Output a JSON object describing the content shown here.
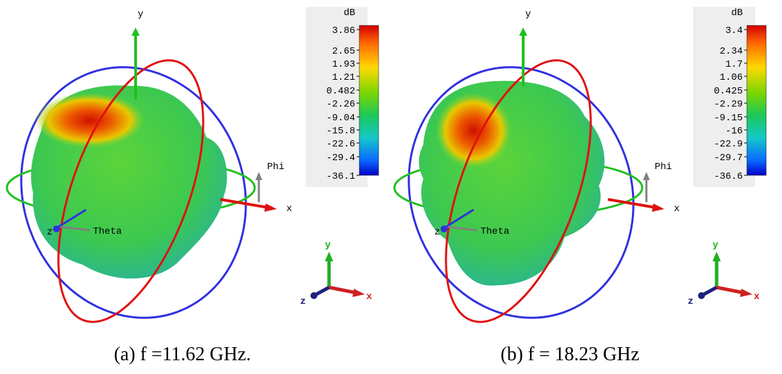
{
  "panels": [
    {
      "caption": "(a) f =11.62 GHz.",
      "colorbar": {
        "unit": "dB",
        "labels": [
          "3.86",
          "2.65",
          "1.93",
          "1.21",
          "0.482",
          "-2.26",
          "-9.04",
          "-15.8",
          "-22.6",
          "-29.4",
          "-36.1"
        ]
      },
      "axes": {
        "x": "x",
        "y": "y",
        "z": "z",
        "phi": "Phi",
        "theta": "Theta"
      },
      "triad": {
        "x": "x",
        "y": "y",
        "z": "z"
      }
    },
    {
      "caption": "(b) f = 18.23 GHz",
      "colorbar": {
        "unit": "dB",
        "labels": [
          "3.4",
          "2.34",
          "1.7",
          "1.06",
          "0.425",
          "-2.29",
          "-9.15",
          "-16",
          "-22.9",
          "-29.7",
          "-36.6"
        ]
      },
      "axes": {
        "x": "x",
        "y": "y",
        "z": "z",
        "phi": "Phi",
        "theta": "Theta"
      },
      "triad": {
        "x": "x",
        "y": "y",
        "z": "z"
      }
    }
  ]
}
